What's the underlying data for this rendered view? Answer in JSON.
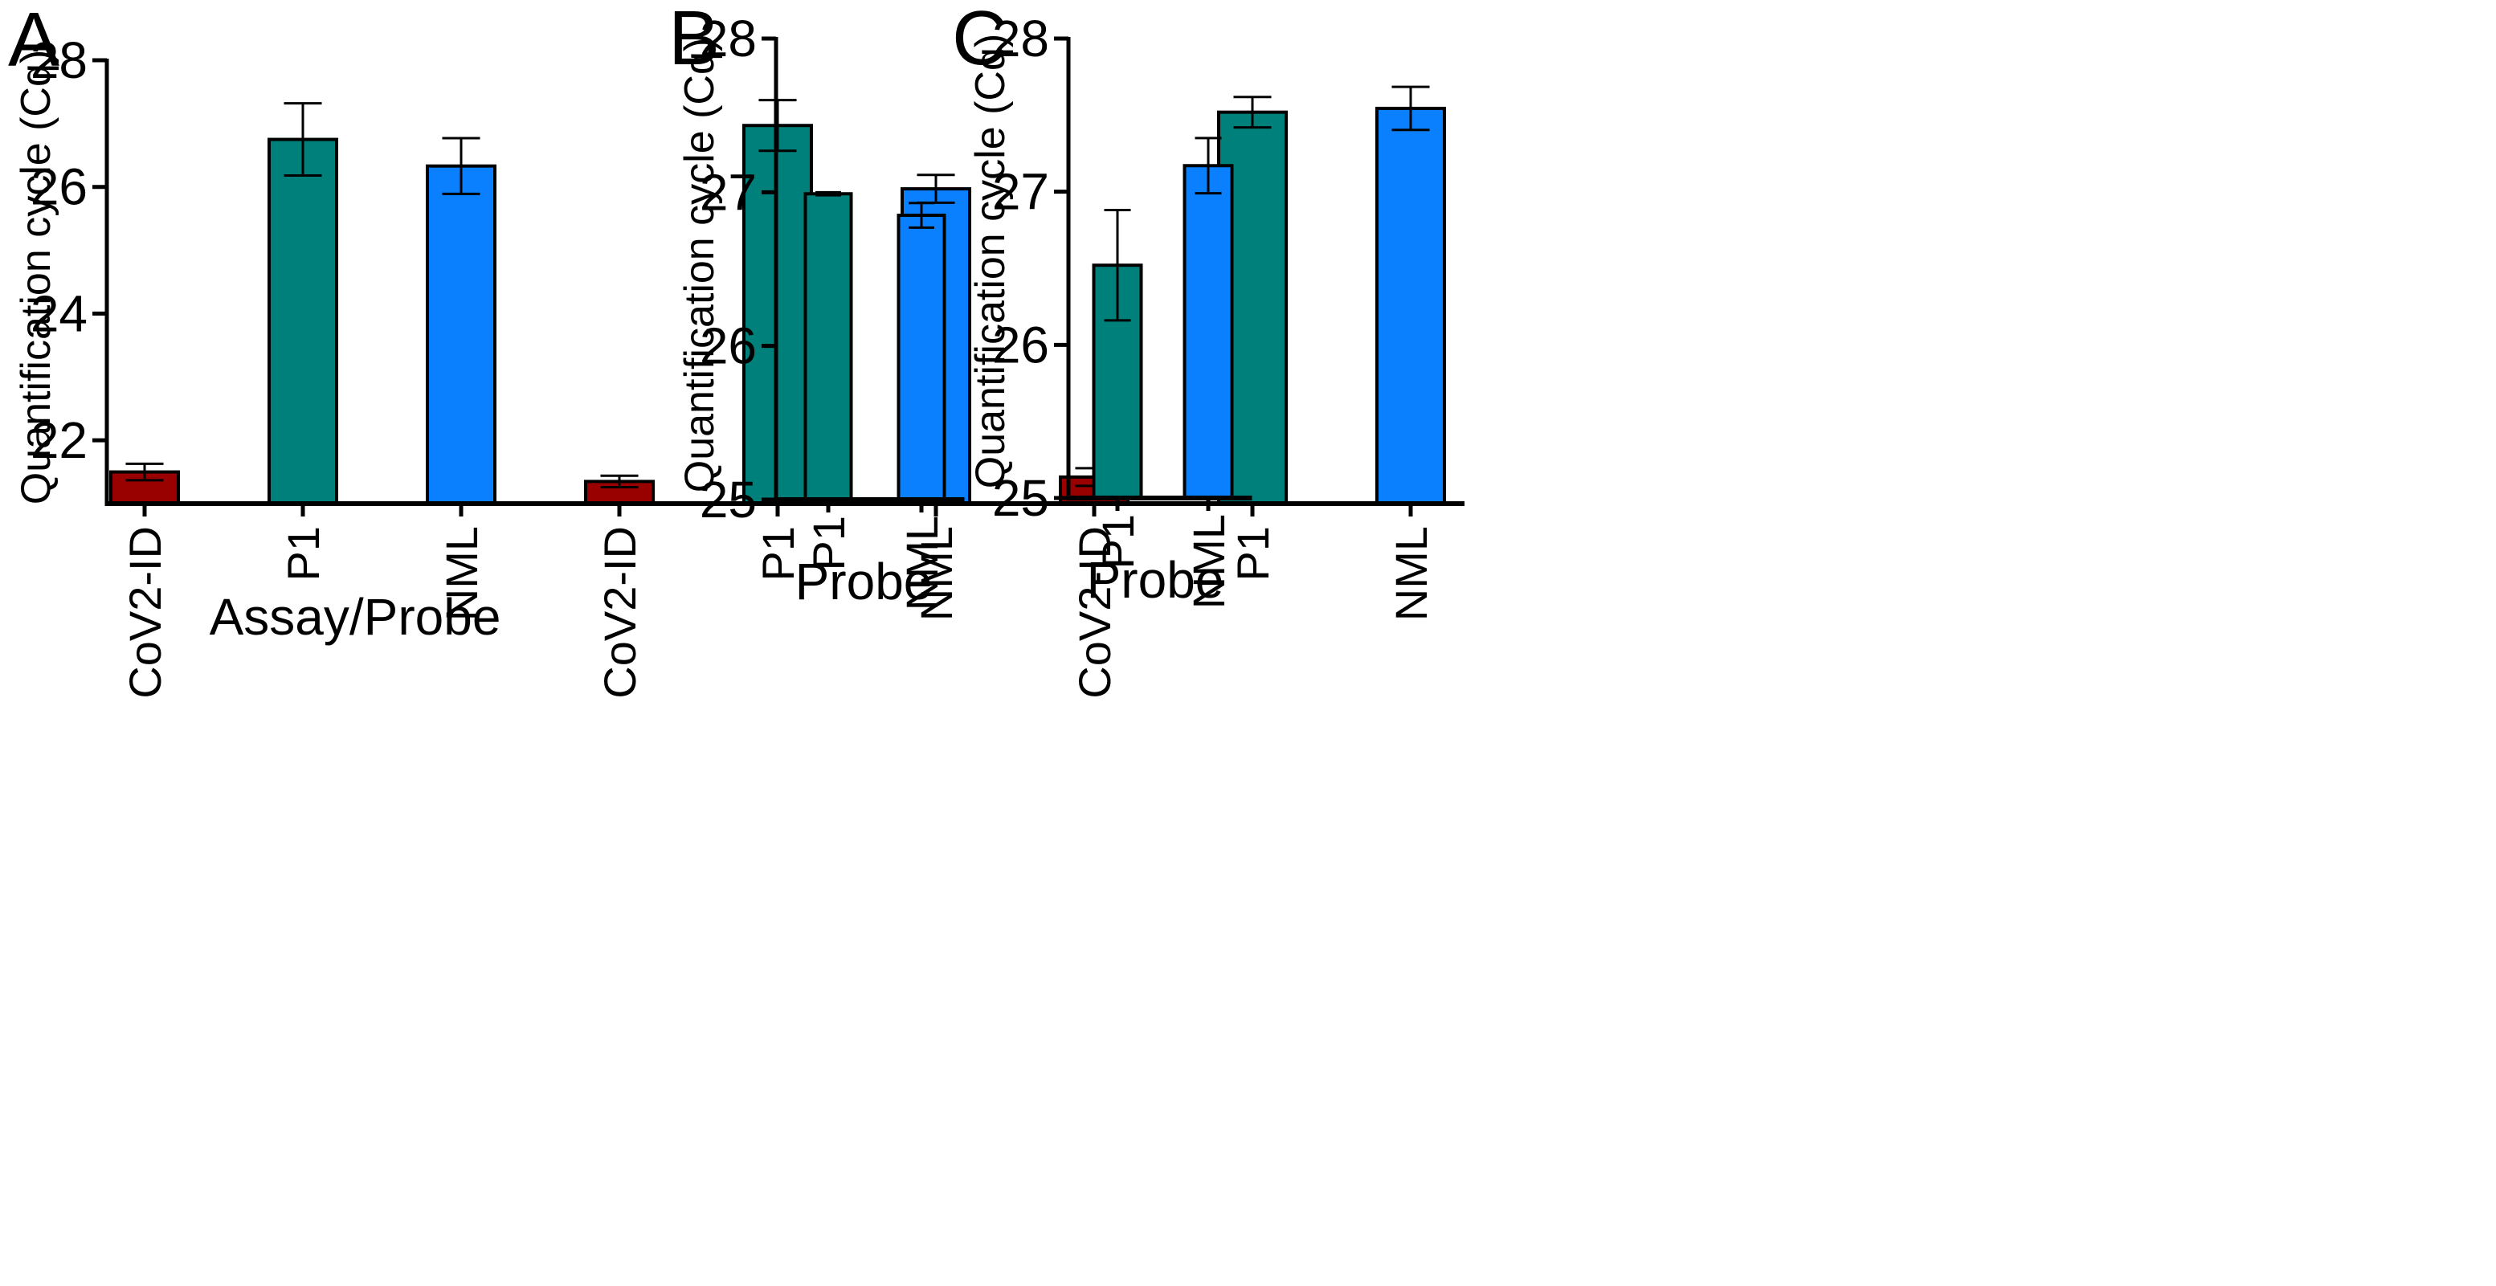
{
  "chart_data": [
    {
      "type": "bar",
      "panel_label": "A",
      "categories": [
        "CoV2-ID",
        "P1",
        "NML",
        "CoV2-ID",
        "P1",
        "NML",
        "CoV2-ID",
        "P1",
        "NML"
      ],
      "values": [
        21.5,
        26.75,
        26.33,
        21.35,
        26.97,
        25.97,
        21.42,
        27.18,
        27.24
      ],
      "errors": [
        0.13,
        0.57,
        0.44,
        0.09,
        0.4,
        0.22,
        0.14,
        0.24,
        0.34
      ],
      "colors": [
        "#990000",
        "#00807A",
        "#0A80FF",
        "#990000",
        "#00807A",
        "#0A80FF",
        "#990000",
        "#00807A",
        "#0A80FF"
      ],
      "ylabel": "Quantification cycle (Cq)",
      "xlabel": "Assay/Probe",
      "ylim": [
        21,
        28
      ],
      "yticks": [
        22,
        24,
        26,
        28
      ],
      "ytick_labels": [
        "22",
        "24",
        "26",
        "28"
      ]
    },
    {
      "type": "bar",
      "panel_label": "B",
      "categories": [
        "P1",
        "NML"
      ],
      "values": [
        26.99,
        26.85
      ],
      "errors": [
        0.01,
        0.08
      ],
      "colors": [
        "#00807A",
        "#0A80FF"
      ],
      "ylabel": "Quantification cycle (Cq)",
      "xlabel": "Probe",
      "ylim": [
        25,
        28
      ],
      "yticks": [
        25,
        26,
        27,
        28
      ],
      "ytick_labels": [
        "25",
        "26",
        "27",
        "28"
      ]
    },
    {
      "type": "bar",
      "panel_label": "C",
      "categories": [
        "P1",
        "NML"
      ],
      "values": [
        26.52,
        27.17
      ],
      "errors": [
        0.36,
        0.18
      ],
      "colors": [
        "#00807A",
        "#0A80FF"
      ],
      "ylabel": "Quantification cycle (Cq)",
      "xlabel": "Probe",
      "ylim": [
        25,
        28
      ],
      "yticks": [
        25,
        26,
        27,
        28
      ],
      "ytick_labels": [
        "25",
        "26",
        "27",
        "28"
      ]
    }
  ]
}
